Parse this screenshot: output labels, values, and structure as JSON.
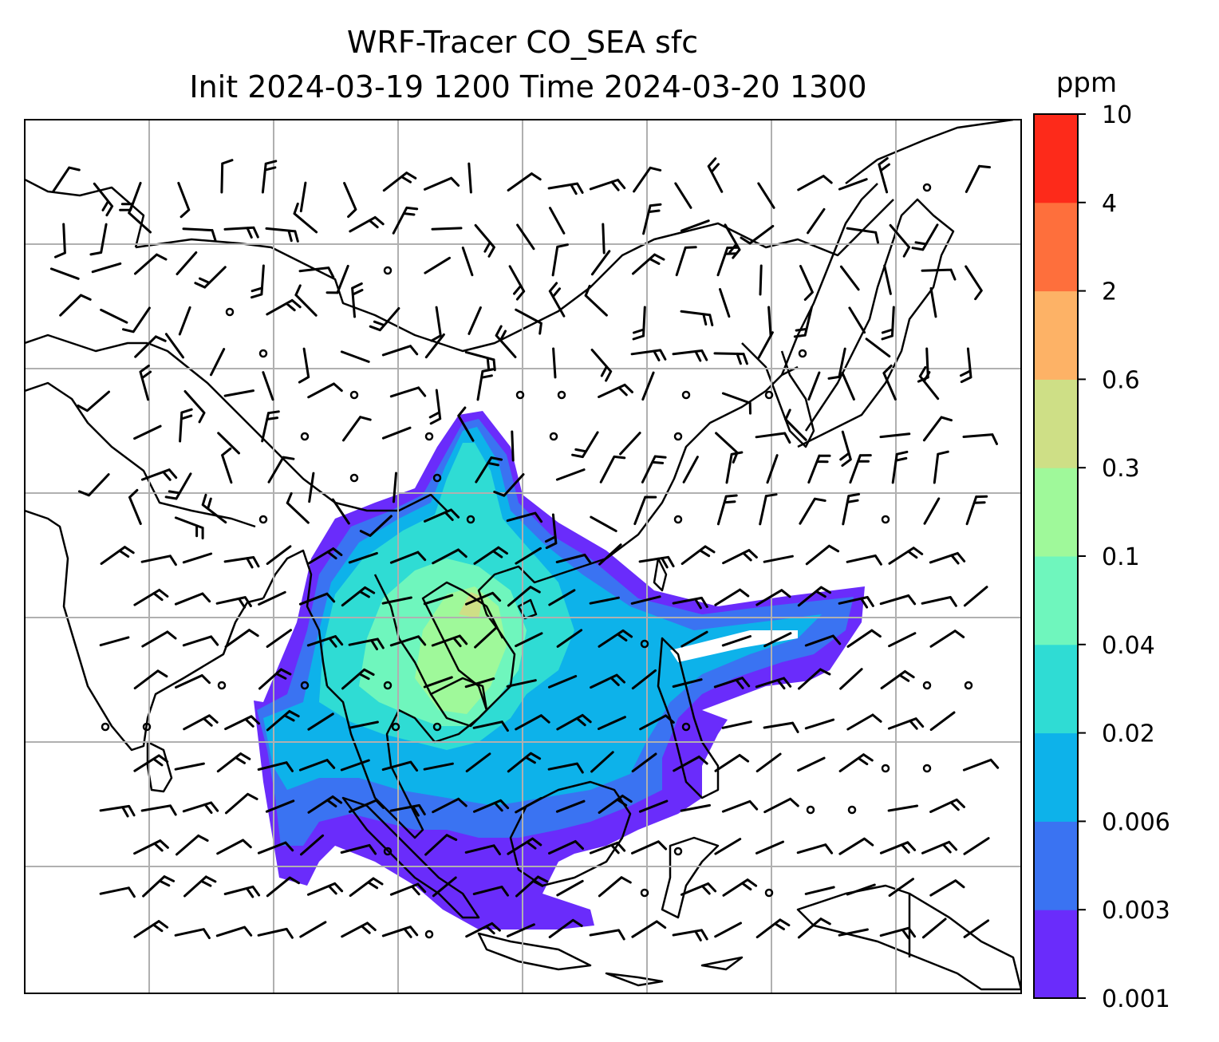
{
  "title_line1": "WRF-Tracer CO_SEA sfc",
  "title_line2": "Init 2024-03-19 1200 Time 2024-03-20 1300",
  "colorbar": {
    "unit": "ppm",
    "tick_labels": [
      "0.001",
      "0.003",
      "0.006",
      "0.02",
      "0.04",
      "0.1",
      "0.3",
      "0.6",
      "2",
      "4",
      "10"
    ],
    "colors": [
      "#6a2cfb",
      "#3a73f2",
      "#0db2ea",
      "#2fdcd4",
      "#6ff6bd",
      "#9ff99a",
      "#cedf86",
      "#fdb266",
      "#fe6f3c",
      "#fd2a1a"
    ]
  },
  "map": {
    "background": "#ffffff",
    "coastline_color": "#000000",
    "gridline_color": "#b0b0b0",
    "wind_barb_color": "#000000"
  }
}
